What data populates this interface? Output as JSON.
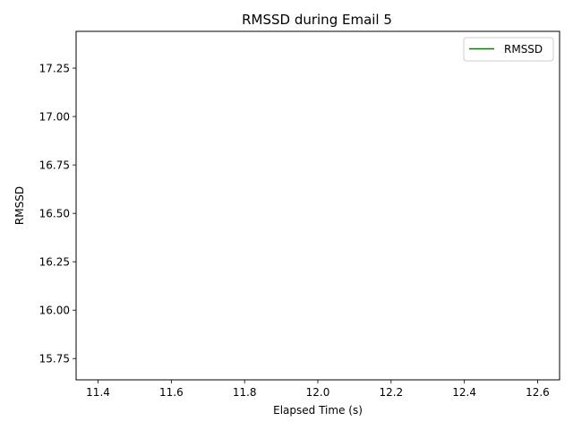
{
  "chart_data": {
    "type": "line",
    "title": "RMSSD during Email 5",
    "xlabel": "Elapsed Time (s)",
    "ylabel": "RMSSD",
    "xlim": [
      11.34,
      12.66
    ],
    "ylim": [
      15.64,
      17.44
    ],
    "x_ticks": [
      "11.4",
      "11.6",
      "11.8",
      "12.0",
      "12.2",
      "12.4",
      "12.6"
    ],
    "y_ticks": [
      "15.75",
      "16.00",
      "16.25",
      "16.50",
      "16.75",
      "17.00",
      "17.25"
    ],
    "grid": false,
    "legend_position": "top-right",
    "series": [
      {
        "name": "RMSSD",
        "color": "#008000",
        "x": [],
        "y": []
      }
    ]
  }
}
